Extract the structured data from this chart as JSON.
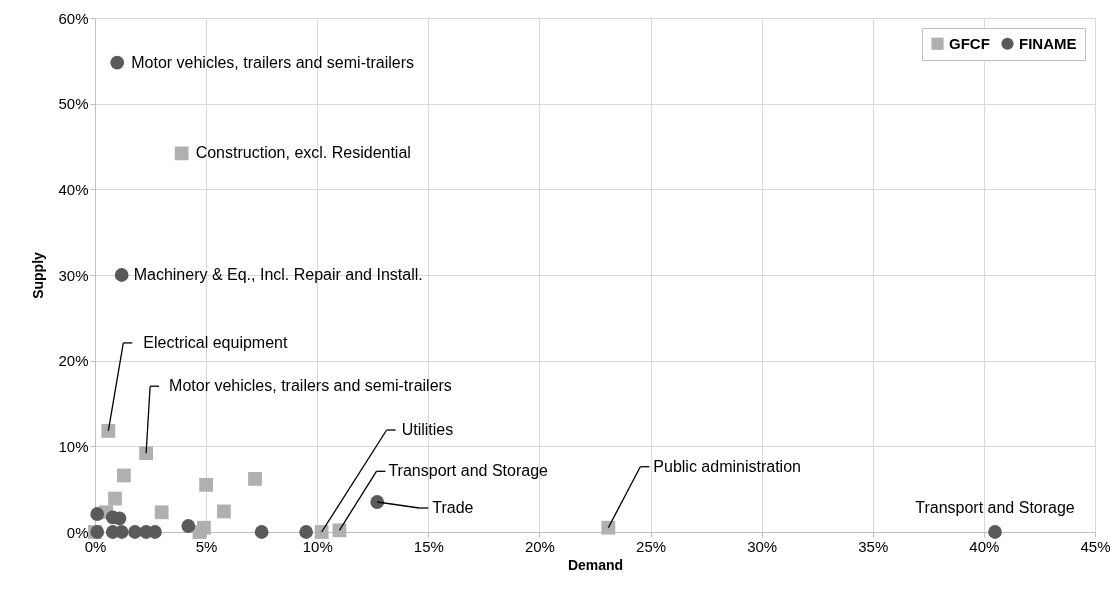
{
  "chart_data": {
    "type": "scatter",
    "xlabel": "Demand",
    "ylabel": "Supply",
    "xlim": [
      0,
      45
    ],
    "ylim": [
      0,
      60
    ],
    "xticks": [
      {
        "value": 0,
        "label": "0%"
      },
      {
        "value": 5,
        "label": "5%"
      },
      {
        "value": 10,
        "label": "10%"
      },
      {
        "value": 15,
        "label": "15%"
      },
      {
        "value": 20,
        "label": "20%"
      },
      {
        "value": 25,
        "label": "25%"
      },
      {
        "value": 30,
        "label": "30%"
      },
      {
        "value": 35,
        "label": "35%"
      },
      {
        "value": 40,
        "label": "40%"
      },
      {
        "value": 45,
        "label": "45%"
      }
    ],
    "yticks": [
      {
        "value": 0,
        "label": "0%"
      },
      {
        "value": 10,
        "label": "10%"
      },
      {
        "value": 20,
        "label": "20%"
      },
      {
        "value": 30,
        "label": "30%"
      },
      {
        "value": 40,
        "label": "40%"
      },
      {
        "value": 50,
        "label": "50%"
      },
      {
        "value": 60,
        "label": "60%"
      }
    ],
    "grid": true,
    "legend": "top right",
    "series": [
      {
        "name": "GFCF",
        "color": "#b0b0b0",
        "marker": "square",
        "x": [
          0,
          0.5,
          0.6,
          0.9,
          1.3,
          2.3,
          3.0,
          3.9,
          4.7,
          4.9,
          5.0,
          5.8,
          7.2,
          10.2,
          11.0,
          23.1
        ],
        "values": [
          0,
          2.3,
          11.8,
          3.9,
          6.6,
          9.2,
          2.3,
          44.2,
          0,
          0.5,
          5.5,
          2.4,
          6.2,
          0,
          0.2,
          0.5
        ]
      },
      {
        "name": "FINAME",
        "color": "#5a5a5a",
        "marker": "circle",
        "x": [
          0.1,
          0.1,
          0.8,
          0.8,
          1.0,
          1.1,
          1.2,
          1.2,
          1.8,
          2.3,
          2.7,
          4.2,
          7.5,
          9.5,
          12.7,
          40.5
        ],
        "values": [
          2.1,
          0,
          1.7,
          0,
          54.8,
          1.6,
          0,
          30,
          0,
          0,
          0,
          0.7,
          0,
          0,
          3.5,
          0
        ]
      }
    ],
    "annotations": [
      {
        "text": "Motor vehicles, trailers and semi-trailers",
        "x": 1.0,
        "y": 54.8
      },
      {
        "text": "Construction, excl. Residential",
        "x": 3.9,
        "y": 44.2
      },
      {
        "text": "Machinery & Eq., Incl. Repair and Install.",
        "x": 1.2,
        "y": 30
      },
      {
        "text": "Electrical equipment",
        "x": 0.6,
        "y": 11.8
      },
      {
        "text": "Motor vehicles, trailers and semi-trailers",
        "x": 2.3,
        "y": 9.2
      },
      {
        "text": "Utilities",
        "x": 10.2,
        "y": 0
      },
      {
        "text": "Transport and Storage",
        "x": 11.0,
        "y": 0.2
      },
      {
        "text": "Public administration",
        "x": 23.1,
        "y": 0.5
      },
      {
        "text": "Trade",
        "x": 12.7,
        "y": 3.5
      },
      {
        "text": "Transport and Storage",
        "x": 40.5,
        "y": 0
      }
    ]
  }
}
